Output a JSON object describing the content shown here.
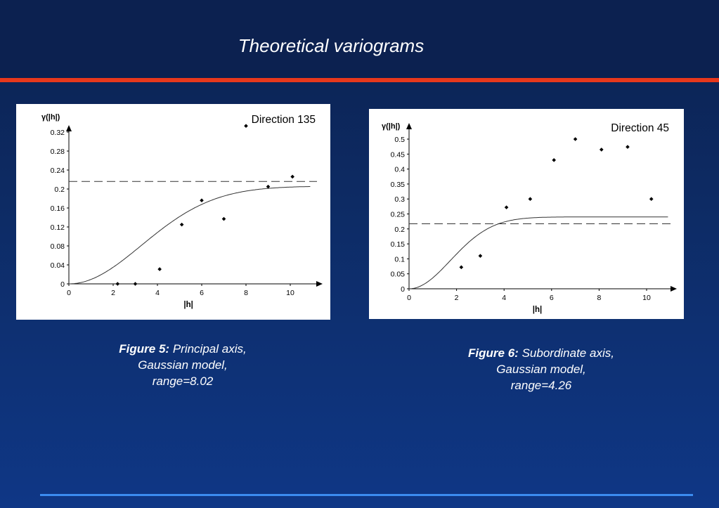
{
  "slide": {
    "title": "Theoretical variograms"
  },
  "figures": [
    {
      "caption_label": "Figure 5:",
      "caption_line1": "Principal axis,",
      "caption_line2": "Gaussian model,",
      "caption_line3": "range=8.02"
    },
    {
      "caption_label": "Figure 6:",
      "caption_line1": "Subordinate axis,",
      "caption_line2": "Gaussian model,",
      "caption_line3": "range=4.26"
    }
  ],
  "colors": {
    "background": "#0d2b64",
    "accent_bar": "#e8381c",
    "bottom_line": "#3b8cf0",
    "text": "#ffffff"
  },
  "chart_data": [
    {
      "type": "scatter",
      "title": "Direction 135",
      "ylabel": "γ(|h|)",
      "xlabel": "|h|",
      "xlim": [
        0,
        10.9
      ],
      "ylim": [
        0,
        0.335
      ],
      "xticks": [
        0,
        2,
        4,
        6,
        8,
        10
      ],
      "yticks": [
        0,
        0.04,
        0.08,
        0.12,
        0.16,
        0.2,
        0.24,
        0.28,
        0.32
      ],
      "ytick_labels": [
        "0",
        "0.04",
        "0.08",
        "0.12",
        "0.16",
        "0.2",
        "0.24",
        "0.28",
        "0.32"
      ],
      "points": [
        {
          "x": 2.2,
          "y": 0.0
        },
        {
          "x": 3.0,
          "y": 0.0
        },
        {
          "x": 4.1,
          "y": 0.031
        },
        {
          "x": 5.1,
          "y": 0.125
        },
        {
          "x": 6.0,
          "y": 0.176
        },
        {
          "x": 7.0,
          "y": 0.137
        },
        {
          "x": 8.0,
          "y": 0.333
        },
        {
          "x": 9.0,
          "y": 0.205
        },
        {
          "x": 10.1,
          "y": 0.226
        }
      ],
      "sill_dashed": 0.216,
      "model": {
        "kind": "gaussian",
        "sill": 0.206,
        "range": 8.02
      },
      "legend": "top-right"
    },
    {
      "type": "scatter",
      "title": "Direction 45",
      "ylabel": "γ(|h|)",
      "xlabel": "|h|",
      "xlim": [
        0,
        10.9
      ],
      "ylim": [
        0,
        0.5
      ],
      "xticks": [
        0,
        2,
        4,
        6,
        8,
        10
      ],
      "yticks": [
        0,
        0.05,
        0.1,
        0.15,
        0.2,
        0.25,
        0.3,
        0.35,
        0.4,
        0.45,
        0.5
      ],
      "ytick_labels": [
        "0",
        "0.05",
        "0.1",
        "0.15",
        "0.2",
        "0.25",
        "0.3",
        "0.35",
        "0.4",
        "0.45",
        "0.5"
      ],
      "points": [
        {
          "x": 2.2,
          "y": 0.072
        },
        {
          "x": 3.0,
          "y": 0.11
        },
        {
          "x": 4.1,
          "y": 0.272
        },
        {
          "x": 5.1,
          "y": 0.3
        },
        {
          "x": 6.1,
          "y": 0.43
        },
        {
          "x": 7.0,
          "y": 0.5
        },
        {
          "x": 8.1,
          "y": 0.465
        },
        {
          "x": 9.2,
          "y": 0.474
        },
        {
          "x": 10.2,
          "y": 0.3
        }
      ],
      "sill_dashed": 0.217,
      "model": {
        "kind": "gaussian",
        "sill": 0.24,
        "range": 4.26
      },
      "legend": "top-right"
    }
  ]
}
